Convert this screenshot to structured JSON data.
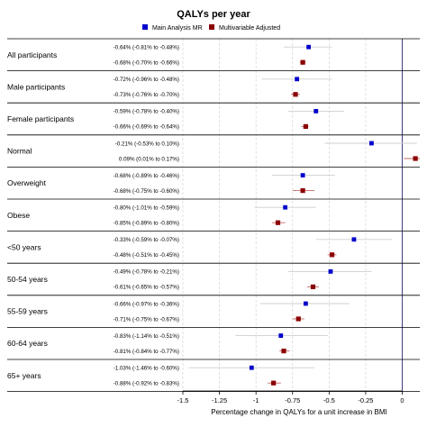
{
  "chart_data": {
    "type": "forest",
    "title": "QALYs per year",
    "xlabel": "Percentage change in QALYs for a unit increase in BMI",
    "xlim": [
      -1.5,
      0.12
    ],
    "xticks": [
      -1.5,
      -1.25,
      -1,
      -0.75,
      -0.5,
      -0.25,
      0
    ],
    "xtick_labels": [
      "-1.5",
      "-1.25",
      "-1",
      "-0.75",
      "-0.5",
      "-0.25",
      "0"
    ],
    "grid": true,
    "legend_position": "top",
    "series": [
      {
        "name": "Main Analysis MR",
        "color": "#0000cc"
      },
      {
        "name": "Multivariable Adjusted",
        "color": "#8b0000"
      }
    ],
    "groups": [
      {
        "label": "All participants",
        "rows": [
          {
            "series": 0,
            "est": -0.64,
            "lo": -0.81,
            "hi": -0.48,
            "text": "-0.64% (-0.81% to -0.48%)"
          },
          {
            "series": 1,
            "est": -0.68,
            "lo": -0.7,
            "hi": -0.66,
            "text": "-0.68% (-0.70% to -0.66%)"
          }
        ]
      },
      {
        "label": "Male participants",
        "rows": [
          {
            "series": 0,
            "est": -0.72,
            "lo": -0.96,
            "hi": -0.48,
            "text": "-0.72% (-0.96% to -0.48%)"
          },
          {
            "series": 1,
            "est": -0.73,
            "lo": -0.76,
            "hi": -0.7,
            "text": "-0.73% (-0.76% to -0.70%)"
          }
        ]
      },
      {
        "label": "Female participants",
        "rows": [
          {
            "series": 0,
            "est": -0.59,
            "lo": -0.78,
            "hi": -0.4,
            "text": "-0.59% (-0.78% to -0.40%)"
          },
          {
            "series": 1,
            "est": -0.66,
            "lo": -0.69,
            "hi": -0.64,
            "text": "-0.66% (-0.69% to -0.64%)"
          }
        ]
      },
      {
        "label": "Normal",
        "rows": [
          {
            "series": 0,
            "est": -0.21,
            "lo": -0.53,
            "hi": 0.1,
            "text": "-0.21% (-0.53% to 0.10%)"
          },
          {
            "series": 1,
            "est": 0.09,
            "lo": 0.01,
            "hi": 0.17,
            "text": "0.09% (0.01% to 0.17%)"
          }
        ]
      },
      {
        "label": "Overweight",
        "rows": [
          {
            "series": 0,
            "est": -0.68,
            "lo": -0.89,
            "hi": -0.46,
            "text": "-0.68% (-0.89% to -0.46%)"
          },
          {
            "series": 1,
            "est": -0.68,
            "lo": -0.75,
            "hi": -0.6,
            "text": "-0.68% (-0.75% to -0.60%)"
          }
        ]
      },
      {
        "label": "Obese",
        "rows": [
          {
            "series": 0,
            "est": -0.8,
            "lo": -1.01,
            "hi": -0.59,
            "text": "-0.80% (-1.01% to -0.59%)"
          },
          {
            "series": 1,
            "est": -0.85,
            "lo": -0.89,
            "hi": -0.8,
            "text": "-0.85% (-0.89% to -0.80%)"
          }
        ]
      },
      {
        "label": "<50 years",
        "rows": [
          {
            "series": 0,
            "est": -0.33,
            "lo": -0.59,
            "hi": -0.07,
            "text": "-0.33% (-0.59% to -0.07%)"
          },
          {
            "series": 1,
            "est": -0.48,
            "lo": -0.51,
            "hi": -0.45,
            "text": "-0.48% (-0.51% to -0.45%)"
          }
        ]
      },
      {
        "label": "50-54 years",
        "rows": [
          {
            "series": 0,
            "est": -0.49,
            "lo": -0.78,
            "hi": -0.21,
            "text": "-0.49% (-0.78% to -0.21%)"
          },
          {
            "series": 1,
            "est": -0.61,
            "lo": -0.65,
            "hi": -0.57,
            "text": "-0.61% (-0.65% to -0.57%)"
          }
        ]
      },
      {
        "label": "55-59 years",
        "rows": [
          {
            "series": 0,
            "est": -0.66,
            "lo": -0.97,
            "hi": -0.36,
            "text": "-0.66% (-0.97% to -0.36%)"
          },
          {
            "series": 1,
            "est": -0.71,
            "lo": -0.75,
            "hi": -0.67,
            "text": "-0.71% (-0.75% to -0.67%)"
          }
        ]
      },
      {
        "label": "60-64 years",
        "rows": [
          {
            "series": 0,
            "est": -0.83,
            "lo": -1.14,
            "hi": -0.51,
            "text": "-0.83% (-1.14% to -0.51%)"
          },
          {
            "series": 1,
            "est": -0.81,
            "lo": -0.84,
            "hi": -0.77,
            "text": "-0.81% (-0.84% to -0.77%)"
          }
        ]
      },
      {
        "label": "65+ years",
        "rows": [
          {
            "series": 0,
            "est": -1.03,
            "lo": -1.46,
            "hi": -0.6,
            "text": "-1.03% (-1.46% to -0.60%)"
          },
          {
            "series": 1,
            "est": -0.88,
            "lo": -0.92,
            "hi": -0.83,
            "text": "-0.88% (-0.92% to -0.83%)"
          }
        ]
      }
    ]
  }
}
